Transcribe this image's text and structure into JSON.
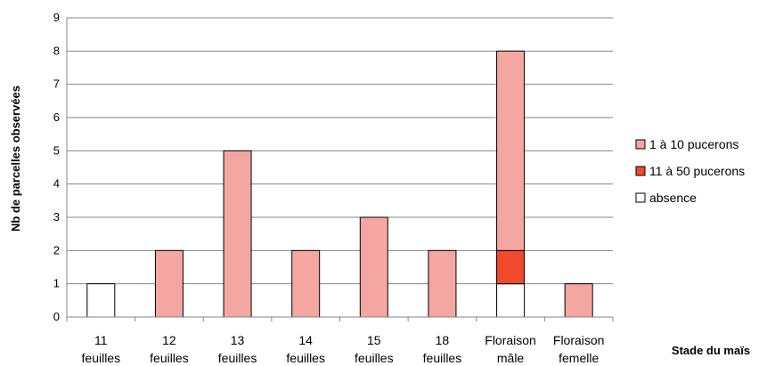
{
  "chart_data": {
    "type": "bar",
    "stacked": true,
    "title": "",
    "xlabel": "Stade du maïs",
    "ylabel": "Nb de parcelles observées",
    "ylim": [
      0,
      9
    ],
    "yticks": [
      0,
      1,
      2,
      3,
      4,
      5,
      6,
      7,
      8,
      9
    ],
    "grid": true,
    "legend_position": "right",
    "categories": [
      [
        "11",
        "feuilles"
      ],
      [
        "12",
        "feuilles"
      ],
      [
        "13",
        "feuilles"
      ],
      [
        "14",
        "feuilles"
      ],
      [
        "15",
        "feuilles"
      ],
      [
        "18",
        "feuilles"
      ],
      [
        "Floraison",
        "mâle"
      ],
      [
        "Floraison",
        "femelle"
      ]
    ],
    "series": [
      {
        "name": "absence",
        "color": "#ffffff",
        "values": [
          1,
          0,
          0,
          0,
          0,
          0,
          1,
          0
        ]
      },
      {
        "name": "11 à 50 pucerons",
        "color": "#f04a2b",
        "values": [
          0,
          0,
          0,
          0,
          0,
          0,
          1,
          0
        ]
      },
      {
        "name": "1 à 10 pucerons",
        "color": "#f4a6a1",
        "values": [
          0,
          2,
          5,
          2,
          3,
          2,
          6,
          1
        ]
      }
    ],
    "legend_order": [
      "1 à 10 pucerons",
      "11 à 50 pucerons",
      "absence"
    ]
  }
}
